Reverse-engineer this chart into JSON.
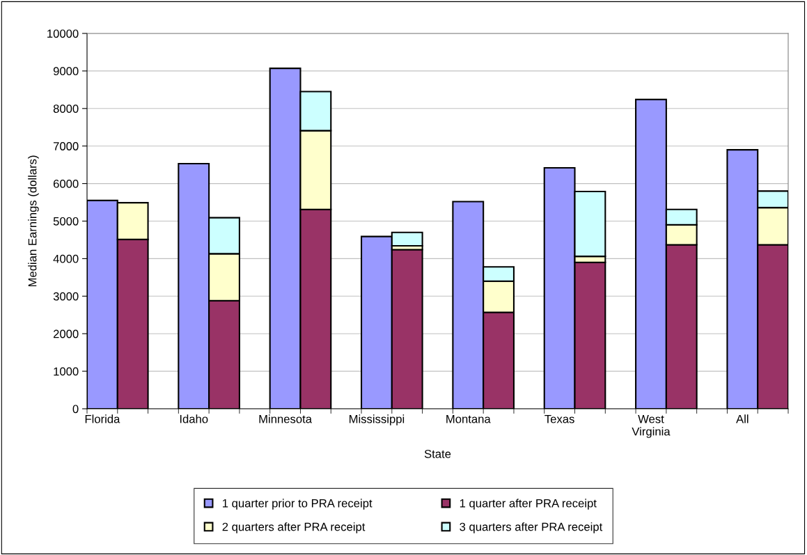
{
  "chart_data": {
    "type": "bar",
    "stacked": true,
    "xlabel": "State",
    "ylabel": "Median Earnings (dollars)",
    "categories": [
      "Florida",
      null,
      null,
      "Idaho",
      null,
      null,
      "Minnesota",
      null,
      null,
      "Mississippi",
      null,
      null,
      "Montana",
      null,
      null,
      "Texas",
      null,
      null,
      "West\nVirginia",
      null,
      null,
      "All",
      null
    ],
    "series": [
      {
        "name": "1 quarter prior to PRA receipt",
        "color": "#9999ff",
        "values": [
          5550,
          null,
          null,
          6530,
          null,
          null,
          9070,
          null,
          null,
          4590,
          null,
          null,
          5520,
          null,
          null,
          6420,
          null,
          null,
          8240,
          null,
          null,
          6900,
          null
        ]
      },
      {
        "name": "1 quarter after PRA receipt",
        "color": "#993366",
        "values": [
          null,
          4510,
          null,
          null,
          2880,
          null,
          null,
          5310,
          null,
          null,
          4240,
          null,
          null,
          2570,
          null,
          null,
          3900,
          null,
          null,
          4370,
          null,
          null,
          4370
        ]
      },
      {
        "name": "2 quarters after PRA receipt",
        "color": "#ffffcc",
        "values": [
          null,
          980,
          null,
          null,
          1250,
          null,
          null,
          2100,
          null,
          null,
          100,
          null,
          null,
          830,
          null,
          null,
          160,
          null,
          null,
          530,
          null,
          null,
          990
        ]
      },
      {
        "name": "3 quarters after PRA receipt",
        "color": "#ccffff",
        "values": [
          null,
          null,
          null,
          null,
          960,
          null,
          null,
          1040,
          null,
          null,
          360,
          null,
          null,
          380,
          null,
          null,
          1730,
          null,
          null,
          410,
          null,
          null,
          440
        ]
      }
    ],
    "ylim": [
      0,
      10000
    ],
    "yticks": [
      0,
      1000,
      2000,
      3000,
      4000,
      5000,
      6000,
      7000,
      8000,
      9000,
      10000
    ],
    "grid": "y",
    "legend": "bottom"
  }
}
